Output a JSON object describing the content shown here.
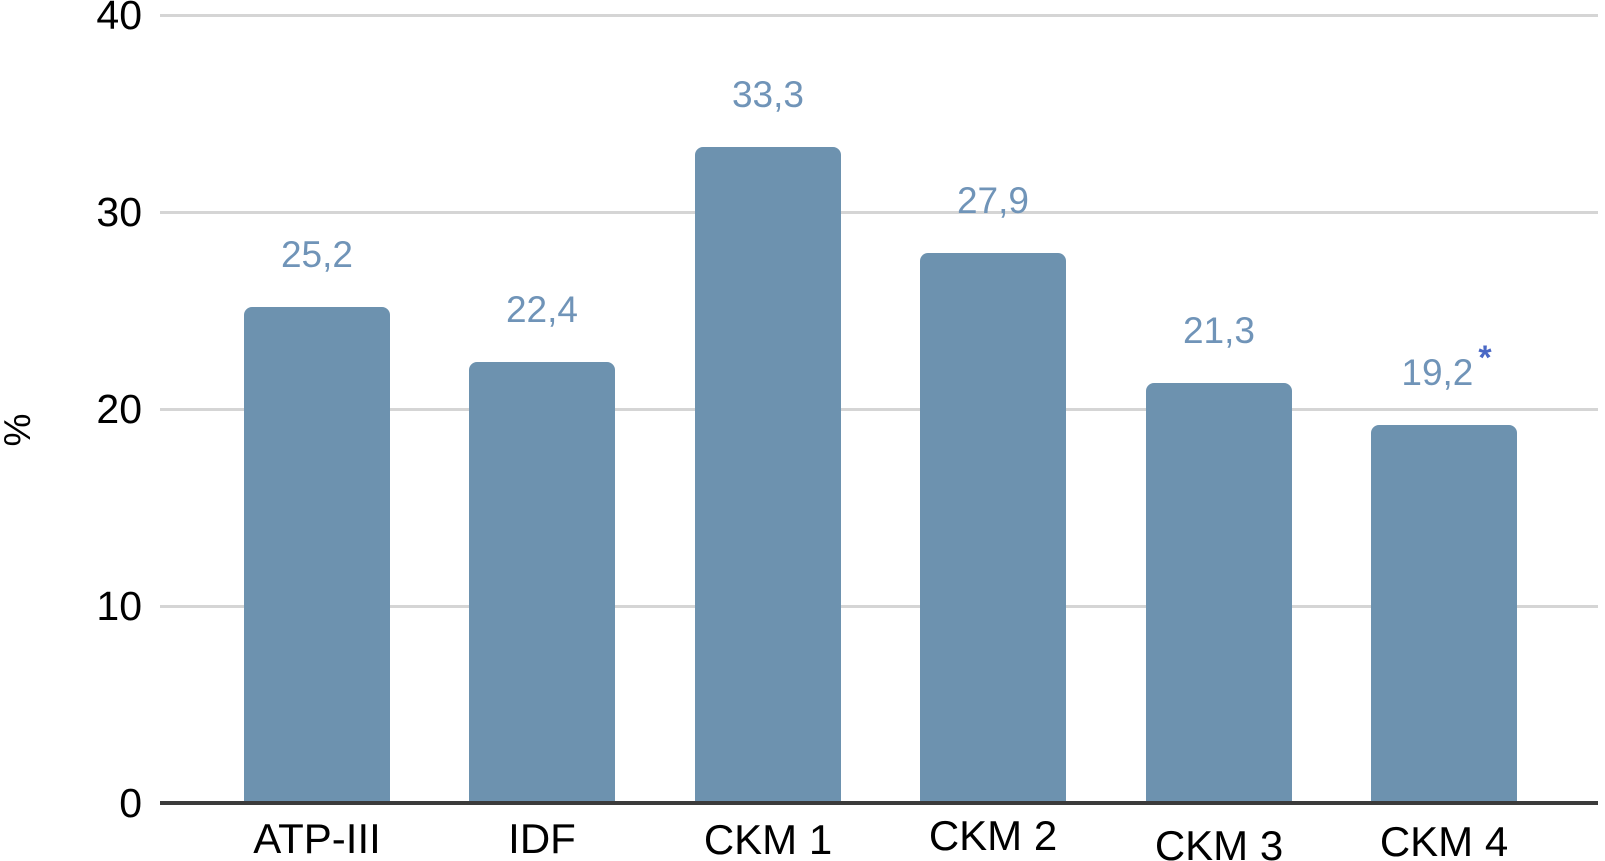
{
  "chart_data": {
    "type": "bar",
    "title": "",
    "xlabel": "",
    "ylabel": "%",
    "categories": [
      "ATP-III",
      "IDF",
      "CKM 1",
      "CKM 2",
      "CKM 3",
      "CKM 4"
    ],
    "values": [
      25.2,
      22.4,
      33.3,
      27.9,
      21.3,
      19.2
    ],
    "value_labels": [
      "25,2",
      "22,4",
      "33,3",
      "27,9",
      "21,3",
      "19,2"
    ],
    "ytick_labels": [
      "0",
      "10",
      "20",
      "30",
      "40"
    ],
    "ytick_values": [
      0,
      10,
      20,
      30,
      40
    ],
    "ylim": [
      0,
      40
    ],
    "grid": true,
    "legend": false,
    "annotations": [
      {
        "category": "CKM 4",
        "text": "*",
        "position": "above-right-of-value-label"
      }
    ],
    "colors": {
      "bar_fill": "#6D92AF",
      "value_label_text": "#7094B8",
      "annotation_text": "#4A68C5",
      "gridline": "#D5D5D5",
      "axis_line": "#3B3B3B",
      "tick_label_text": "#000000",
      "background": "#FFFFFF"
    }
  }
}
